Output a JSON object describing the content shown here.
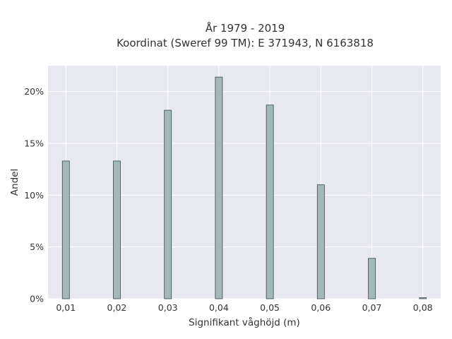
{
  "chart_data": {
    "type": "bar",
    "title": [
      "År 1979 - 2019",
      "Koordinat (Sweref 99 TM): E 371943, N 6163818"
    ],
    "xlabel": "Signifikant våghöjd (m)",
    "ylabel": "Andel",
    "categories": [
      "0,01",
      "0,02",
      "0,03",
      "0,04",
      "0,05",
      "0,06",
      "0,07",
      "0,08"
    ],
    "x": [
      0.01,
      0.02,
      0.03,
      0.04,
      0.05,
      0.06,
      0.07,
      0.08
    ],
    "values": [
      13.3,
      13.3,
      18.2,
      21.4,
      18.7,
      11.0,
      3.9,
      0.1
    ],
    "xlim": [
      0.0065,
      0.0835
    ],
    "ylim": [
      0,
      22.5
    ],
    "yticks": [
      0,
      5,
      10,
      15,
      20
    ],
    "ytick_labels": [
      "0%",
      "5%",
      "10%",
      "15%",
      "20%"
    ],
    "grid": true,
    "legend": false,
    "colors": {
      "plot_background": "#e8e8f0",
      "grid": "#ffffff",
      "bar_fill": "#a3b8b9",
      "bar_edge": "#3a4a4a",
      "text": "#333333"
    }
  }
}
